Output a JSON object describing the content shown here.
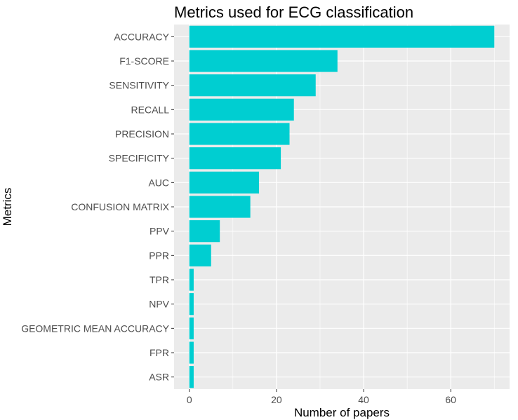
{
  "chart_data": {
    "type": "bar",
    "orientation": "horizontal",
    "title": "Metrics used for ECG classification",
    "xlabel": "Number of papers",
    "ylabel": "Metrics",
    "categories": [
      "ACCURACY",
      "F1-SCORE",
      "SENSITIVITY",
      "RECALL",
      "PRECISION",
      "SPECIFICITY",
      "AUC",
      "CONFUSION MATRIX",
      "PPV",
      "PPR",
      "TPR",
      "NPV",
      "GEOMETRIC MEAN ACCURACY",
      "FPR",
      "ASR"
    ],
    "values": [
      70,
      34,
      29,
      24,
      23,
      21,
      16,
      14,
      7,
      5,
      1,
      1,
      1,
      1,
      1
    ],
    "xticks": [
      0,
      20,
      40,
      60
    ],
    "xlim": [
      -3.5,
      73.5
    ],
    "grid": true,
    "colors": {
      "bar": "#00CED1",
      "panel": "#EBEBEB",
      "grid": "#FFFFFF"
    }
  }
}
